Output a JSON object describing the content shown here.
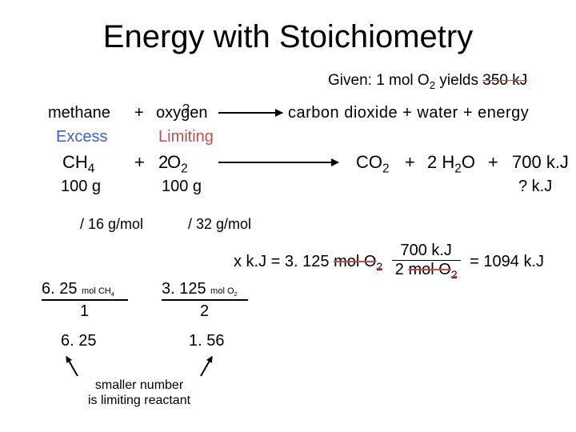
{
  "title": "Energy with Stoichiometry",
  "given_prefix": "Given:  1 mol O",
  "given_sub": "2",
  "given_yields": " yields ",
  "given_strike": "350 kJ",
  "methane": "methane",
  "plus": "+",
  "oxygen": "oxygen",
  "question": "?",
  "rhs_words": "carbon dioxide  +  water   +   energy",
  "excess": "Excess",
  "limiting": "Limiting",
  "ch4_c": "CH",
  "ch4_s": "4",
  "two": "2",
  "o2_o": "O",
  "o2_s": "2",
  "co2_c": "CO",
  "co2_s": "2",
  "h2o_pre": "2 H",
  "h2o_s": "2",
  "h2o_o": "O",
  "kj700": "700 k.J",
  "g100": "100 g",
  "qkj": "? k.J",
  "div16": "/ 16 g/mol",
  "div32": "/ 32 g/mol",
  "xkj_pre": "x k.J  =  3. 125 ",
  "mol_o2": "mol  O",
  "frac_num": "700 k.J",
  "frac_den_pre": "2 ",
  "eq_result": "=  1094 k.J",
  "r4a_v": "6. 25 ",
  "r4a_u": "mol CH",
  "r4a_s": "4",
  "r4b_v": "3. 125 ",
  "r4b_u": "mol O",
  "r4b_s": "2",
  "one": "1",
  "res_a": "6. 25",
  "res_b": "1. 56",
  "smaller_l1": "smaller number",
  "smaller_l2": "is limiting reactant"
}
